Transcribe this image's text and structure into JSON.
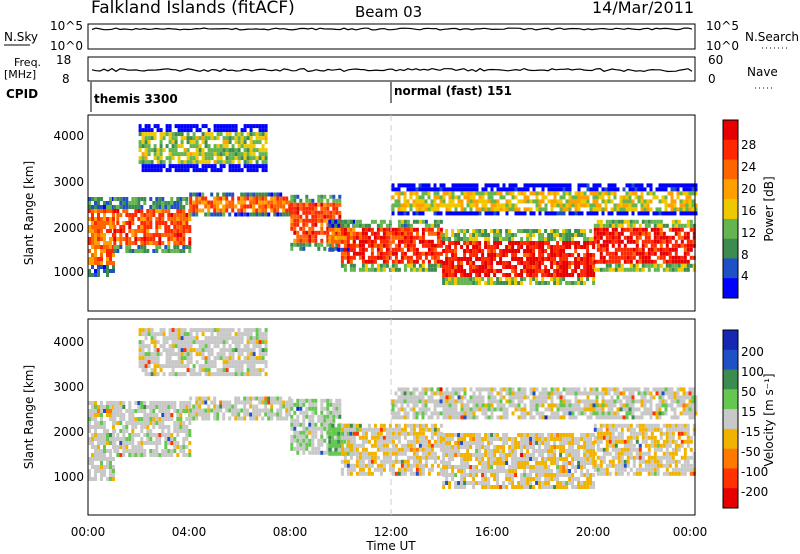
{
  "header": {
    "title": "Falkland Islands (fitACF)",
    "beam": "Beam 03",
    "date": "14/Mar/2011"
  },
  "strip": {
    "nsky_label": "N.Sky",
    "nsky_ticks": [
      "10^5",
      "10^0"
    ],
    "nsearch_label": "N.Search",
    "freq_label": "Freq.",
    "freq_unit": "[MHz]",
    "freq_ticks": [
      "18",
      "8"
    ],
    "nave_label": "Nave",
    "nave_ticks": [
      "60",
      "0"
    ],
    "cpid_label": "CPID",
    "modes": [
      {
        "name": "themis 3300",
        "start_hour": 0.0
      },
      {
        "name": "normal (fast) 151",
        "start_hour": 12.0
      }
    ]
  },
  "power_panel": {
    "ylabel": "Slant Range [km]",
    "yticks": [
      "4000",
      "3000",
      "2000",
      "1000"
    ],
    "colorbar_label": "Power [dB]",
    "colorbar_ticks": [
      "28",
      "24",
      "20",
      "16",
      "12",
      "8",
      "4"
    ],
    "colors": [
      "#0000ff",
      "#2050c8",
      "#3c8c50",
      "#64b450",
      "#f0c800",
      "#ffa000",
      "#ff6400",
      "#ff2800",
      "#e60000"
    ]
  },
  "velocity_panel": {
    "ylabel": "Slant Range [km]",
    "yticks": [
      "4000",
      "3000",
      "2000",
      "1000"
    ],
    "colorbar_label": "Velocity [m s⁻¹]",
    "colorbar_ticks": [
      "200",
      "100",
      "50",
      "15",
      "-15",
      "-50",
      "-100",
      "-200"
    ],
    "colors": [
      "#1428b4",
      "#2050c8",
      "#3c8c50",
      "#64c850",
      "#c8c8c8",
      "#f0b400",
      "#ff7800",
      "#ff3200",
      "#e60000"
    ]
  },
  "xaxis": {
    "label": "Time UT",
    "ticks": [
      "00:00",
      "04:00",
      "08:00",
      "12:00",
      "16:00",
      "20:00",
      "00:00"
    ]
  },
  "chart_data": {
    "type": "heatmap",
    "title": "Falkland Islands (fitACF)",
    "xlabel": "Time UT",
    "ylabel": "Slant Range [km]",
    "xlim_hours": [
      0,
      24
    ],
    "ylim_km": [
      200,
      4500
    ],
    "power_ticks_db": [
      4,
      8,
      12,
      16,
      20,
      24,
      28
    ],
    "velocity_ticks_ms": [
      -200,
      -100,
      -50,
      -15,
      15,
      50,
      100,
      200
    ],
    "echo_regions": [
      {
        "hours": [
          0,
          1
        ],
        "range_km": [
          1000,
          2700
        ],
        "power_db": 22,
        "velocity_ms": 0
      },
      {
        "hours": [
          1,
          4
        ],
        "range_km": [
          1500,
          2700
        ],
        "power_db": 24,
        "velocity_ms": 0
      },
      {
        "hours": [
          4,
          8
        ],
        "range_km": [
          2300,
          2800
        ],
        "power_db": 22,
        "velocity_ms": 0
      },
      {
        "hours": [
          8,
          10
        ],
        "range_km": [
          1600,
          2750
        ],
        "power_db": 24,
        "velocity_ms": 10
      },
      {
        "hours": [
          2,
          7
        ],
        "range_km": [
          3300,
          4300
        ],
        "power_db": 14,
        "velocity_ms": 0
      },
      {
        "hours": [
          9.5,
          10.5
        ],
        "range_km": [
          1500,
          2200
        ],
        "power_db": 20,
        "velocity_ms": 40
      },
      {
        "hours": [
          10,
          14
        ],
        "range_km": [
          1100,
          2200
        ],
        "power_db": 26,
        "velocity_ms": -10
      },
      {
        "hours": [
          14,
          20
        ],
        "range_km": [
          800,
          2000
        ],
        "power_db": 27,
        "velocity_ms": -10
      },
      {
        "hours": [
          20,
          24
        ],
        "range_km": [
          1100,
          2200
        ],
        "power_db": 27,
        "velocity_ms": -10
      },
      {
        "hours": [
          12,
          24
        ],
        "range_km": [
          2300,
          3000
        ],
        "power_db": 16,
        "velocity_ms": 0
      }
    ]
  }
}
